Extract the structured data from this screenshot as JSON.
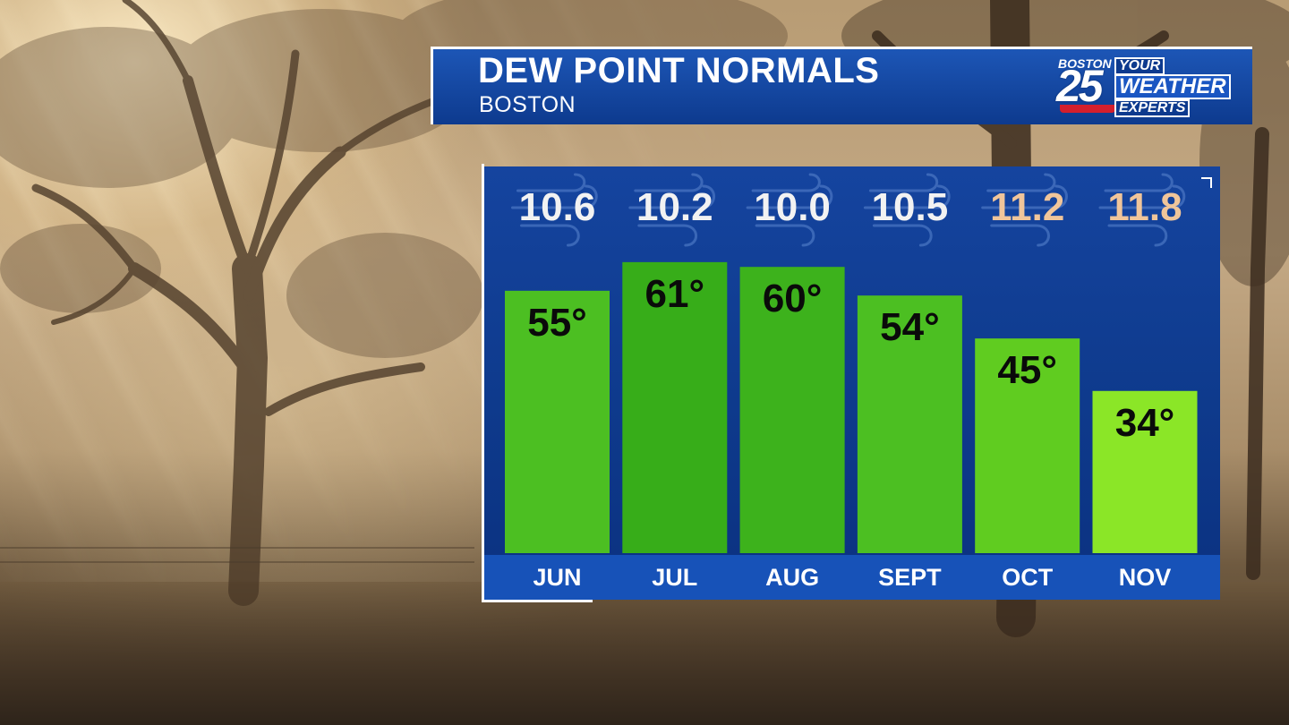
{
  "header": {
    "title": "DEW POINT NORMALS",
    "subtitle": "BOSTON"
  },
  "logo": {
    "city": "BOSTON",
    "number": "25",
    "line1": "YOUR",
    "line2": "WEATHER",
    "line3": "EXPERTS"
  },
  "colors": {
    "panel": "#0e3a8c",
    "title_bar": "#1d56b6",
    "top_value_cool": "#f2f2f2",
    "top_value_warm": "#f0c59a"
  },
  "icons": [
    "wind-icon"
  ],
  "chart_data": {
    "type": "bar",
    "title": "DEW POINT NORMALS",
    "subtitle": "BOSTON",
    "categories": [
      "JUN",
      "JUL",
      "AUG",
      "SEPT",
      "OCT",
      "NOV"
    ],
    "values": [
      55,
      61,
      60,
      54,
      45,
      34
    ],
    "value_labels": [
      "55°",
      "61°",
      "60°",
      "54°",
      "45°",
      "34°"
    ],
    "top_values": [
      "10.6",
      "10.2",
      "10.0",
      "10.5",
      "11.2",
      "11.8"
    ],
    "ylim": [
      0,
      70
    ],
    "bar_colors": [
      "#4cbf22",
      "#37ad19",
      "#3db21c",
      "#4cbf22",
      "#60cc20",
      "#8be627"
    ],
    "top_value_colors": [
      "#f2f2f2",
      "#f2f2f2",
      "#f2f2f2",
      "#f2f2f2",
      "#f0c59a",
      "#f0c59a"
    ],
    "grid": false,
    "legend": "none"
  }
}
